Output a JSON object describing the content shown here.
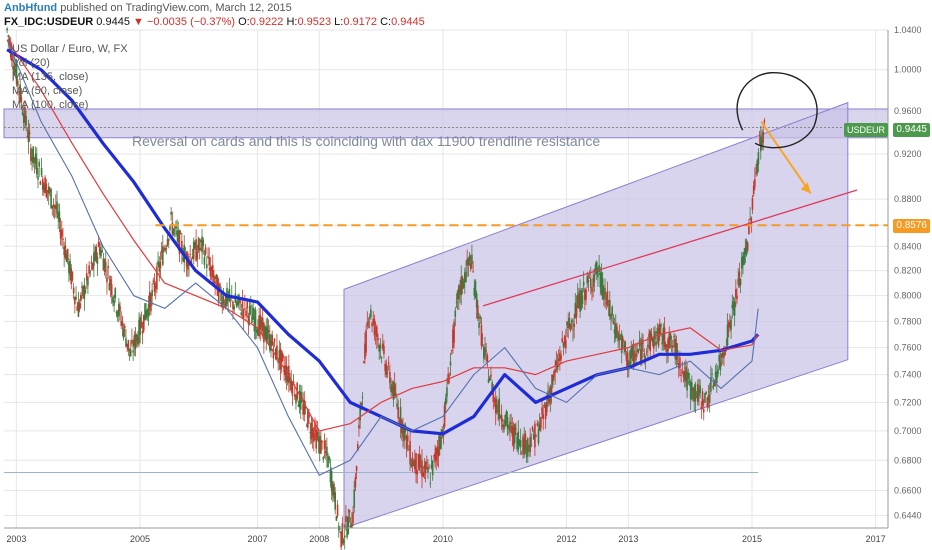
{
  "header": {
    "author": "AnbHfund",
    "published": "published on TradingView.com, March 12, 2015",
    "symbol": "FX_IDC:USDEUR",
    "price": "0.9445",
    "change": "▼ −0.0035 (−0.37%)",
    "o_label": "O:",
    "o": "0.9222",
    "h_label": "H:",
    "h": "0.9523",
    "l_label": "L:",
    "l": "0.9172",
    "c_label": "C:",
    "c": "0.9445"
  },
  "legend": {
    "title": "US Dollar / Euro, W, FX",
    "vol": "Vol (20)",
    "ma1": "MA (135, close)",
    "ma2": "MA (50, close)",
    "ma3": "MA (100, close)"
  },
  "annotation": "Reversal on cards and this is coinciding with dax 11900 trendline resistance",
  "price_tags": {
    "current_symbol": "USDEUR",
    "current": "0.9445",
    "level": "0.8576"
  },
  "colors": {
    "candle_up": "#3b7a3b",
    "candle_down": "#c0392b",
    "ma_blue_thick": "#1f2bd6",
    "ma_red": "#e03a3a",
    "ma_blue_thin": "#5570b0",
    "channel_fill": "#c9c3e6",
    "channel_line": "#8d7fd0",
    "level_orange": "#f59a23",
    "arrow_orange": "#f5a623",
    "trendline_red": "#e0395a",
    "grid": "#e6e6e6"
  },
  "chart_data": {
    "type": "line",
    "title": "US Dollar / Euro, W, FX",
    "x_ticks": [
      "2003",
      "2005",
      "2007",
      "2008",
      "2010",
      "2012",
      "2013",
      "2015",
      "2017"
    ],
    "y_ticks": [
      "0.6440",
      "0.6600",
      "0.6800",
      "0.7000",
      "0.7200",
      "0.7400",
      "0.7600",
      "0.7800",
      "0.8000",
      "0.8200",
      "0.8400",
      "0.8576",
      "0.8800",
      "0.9200",
      "0.9445",
      "0.9600",
      "1.0000",
      "1.0400"
    ],
    "ylim": [
      0.636,
      1.04
    ],
    "scale": "log",
    "grid": true,
    "series": [
      {
        "name": "USDEUR",
        "style": "candles",
        "x": [
          2002.95,
          2003.35,
          2003.75,
          2004.1,
          2004.45,
          2004.95,
          2005.3,
          2005.6,
          2005.85,
          2006.1,
          2006.4,
          2006.8,
          2007.15,
          2007.5,
          2007.9,
          2008.15,
          2008.35,
          2008.55,
          2008.8,
          2009.0,
          2009.25,
          2009.5,
          2009.8,
          2010.0,
          2010.25,
          2010.45,
          2010.65,
          2010.85,
          2011.1,
          2011.35,
          2011.55,
          2011.75,
          2012.0,
          2012.25,
          2012.5,
          2012.75,
          2013.0,
          2013.25,
          2013.5,
          2013.75,
          2014.0,
          2014.25,
          2014.5,
          2014.75,
          2014.95,
          2015.1,
          2015.2
        ],
        "y": [
          1.04,
          0.92,
          0.87,
          0.79,
          0.84,
          0.755,
          0.8,
          0.86,
          0.83,
          0.84,
          0.8,
          0.79,
          0.77,
          0.74,
          0.7,
          0.68,
          0.63,
          0.645,
          0.79,
          0.76,
          0.72,
          0.68,
          0.67,
          0.7,
          0.8,
          0.83,
          0.76,
          0.72,
          0.7,
          0.69,
          0.7,
          0.73,
          0.77,
          0.8,
          0.82,
          0.78,
          0.75,
          0.76,
          0.77,
          0.76,
          0.73,
          0.72,
          0.75,
          0.8,
          0.85,
          0.92,
          0.9445
        ]
      },
      {
        "name": "MA (135, close)",
        "x": [
          2002.95,
          2003.5,
          2004.0,
          2004.5,
          2005.0,
          2005.5,
          2006.0,
          2006.5,
          2007.0,
          2007.5,
          2008.0,
          2008.5,
          2009.0,
          2009.5,
          2010.0,
          2010.5,
          2011.0,
          2011.5,
          2012.0,
          2012.5,
          2013.0,
          2013.5,
          2014.0,
          2014.5,
          2015.0,
          2015.1
        ],
        "y": [
          1.02,
          1.0,
          0.97,
          0.93,
          0.895,
          0.855,
          0.82,
          0.8,
          0.795,
          0.77,
          0.75,
          0.72,
          0.71,
          0.7,
          0.698,
          0.71,
          0.74,
          0.72,
          0.73,
          0.74,
          0.745,
          0.755,
          0.755,
          0.758,
          0.765,
          0.77
        ]
      },
      {
        "name": "MA (50, close)",
        "x": [
          2002.95,
          2003.5,
          2004.0,
          2004.5,
          2005.0,
          2005.5,
          2006.0,
          2006.5,
          2007.0,
          2007.5,
          2008.0,
          2008.5,
          2009.0,
          2009.5,
          2010.0,
          2010.5,
          2011.0,
          2011.5,
          2012.0,
          2012.5,
          2013.0,
          2013.5,
          2014.0,
          2014.5,
          2015.0,
          2015.1
        ],
        "y": [
          1.03,
          0.98,
          0.93,
          0.885,
          0.845,
          0.81,
          0.8,
          0.79,
          0.775,
          0.74,
          0.7,
          0.705,
          0.72,
          0.73,
          0.735,
          0.745,
          0.745,
          0.74,
          0.75,
          0.755,
          0.76,
          0.77,
          0.775,
          0.758,
          0.762,
          0.77
        ]
      },
      {
        "name": "MA (100, close)",
        "x": [
          2002.95,
          2003.5,
          2004.0,
          2004.5,
          2005.0,
          2005.5,
          2006.0,
          2006.5,
          2007.0,
          2007.5,
          2008.0,
          2008.5,
          2009.0,
          2009.5,
          2010.0,
          2010.5,
          2011.0,
          2011.5,
          2012.0,
          2012.5,
          2013.0,
          2013.5,
          2014.0,
          2014.5,
          2015.0,
          2015.1
        ],
        "y": [
          1.03,
          0.95,
          0.9,
          0.84,
          0.8,
          0.79,
          0.81,
          0.79,
          0.76,
          0.71,
          0.67,
          0.68,
          0.71,
          0.7,
          0.71,
          0.74,
          0.76,
          0.73,
          0.72,
          0.74,
          0.745,
          0.74,
          0.75,
          0.73,
          0.75,
          0.79
        ]
      }
    ]
  }
}
